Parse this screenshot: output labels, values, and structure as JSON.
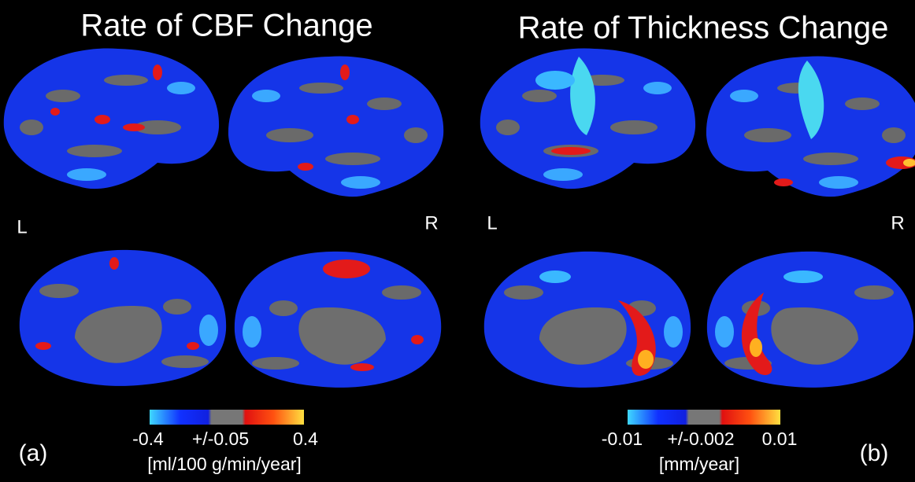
{
  "panels": [
    {
      "title": "Rate of CBF Change",
      "hemisphere_labels": [
        "L",
        "R"
      ],
      "colorbar": {
        "ticks": [
          "-0.4",
          "+/-0.05",
          "0.4"
        ],
        "unit": "[ml/100 g/min/year]"
      },
      "panel_label": "(a)"
    },
    {
      "title": "Rate of Thickness Change",
      "hemisphere_labels": [
        "L",
        "R"
      ],
      "colorbar": {
        "ticks": [
          "-0.01",
          "+/-0.002",
          "0.01"
        ],
        "unit": "[mm/year]"
      },
      "panel_label": "(b)"
    }
  ]
}
